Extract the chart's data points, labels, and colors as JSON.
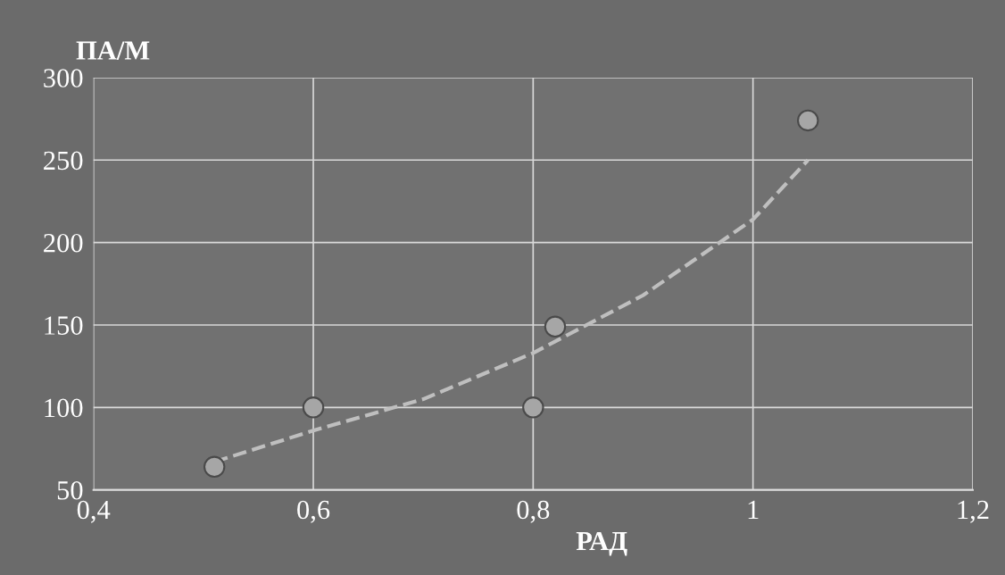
{
  "chart_data": {
    "type": "scatter",
    "xlabel": "РАД",
    "ylabel": "ПА/М",
    "xlim": [
      0.4,
      1.2
    ],
    "xticks": [
      {
        "value": 0.4,
        "label": "0,4"
      },
      {
        "value": 0.6,
        "label": "0,6"
      },
      {
        "value": 0.8,
        "label": "0,8"
      },
      1,
      {
        "value": 1.2,
        "label": "1,2"
      }
    ],
    "ylim": [
      50,
      300
    ],
    "yticks": [
      50,
      100,
      150,
      200,
      250,
      300
    ],
    "grid": true,
    "marker": "circle",
    "series": [
      {
        "color": "#a6a6a6",
        "x": [
          0.51,
          0.6,
          0.8,
          0.82,
          1.05
        ],
        "values": [
          64,
          100,
          100,
          149,
          274
        ]
      },
      {
        "type": "line",
        "color": "#bfbfbf",
        "line_style": "dashed",
        "marker": "none",
        "x": [
          0.51,
          0.6,
          0.7,
          0.8,
          0.9,
          1.0,
          1.05
        ],
        "values": [
          67,
          86,
          105,
          133,
          168,
          214,
          250
        ]
      }
    ]
  }
}
